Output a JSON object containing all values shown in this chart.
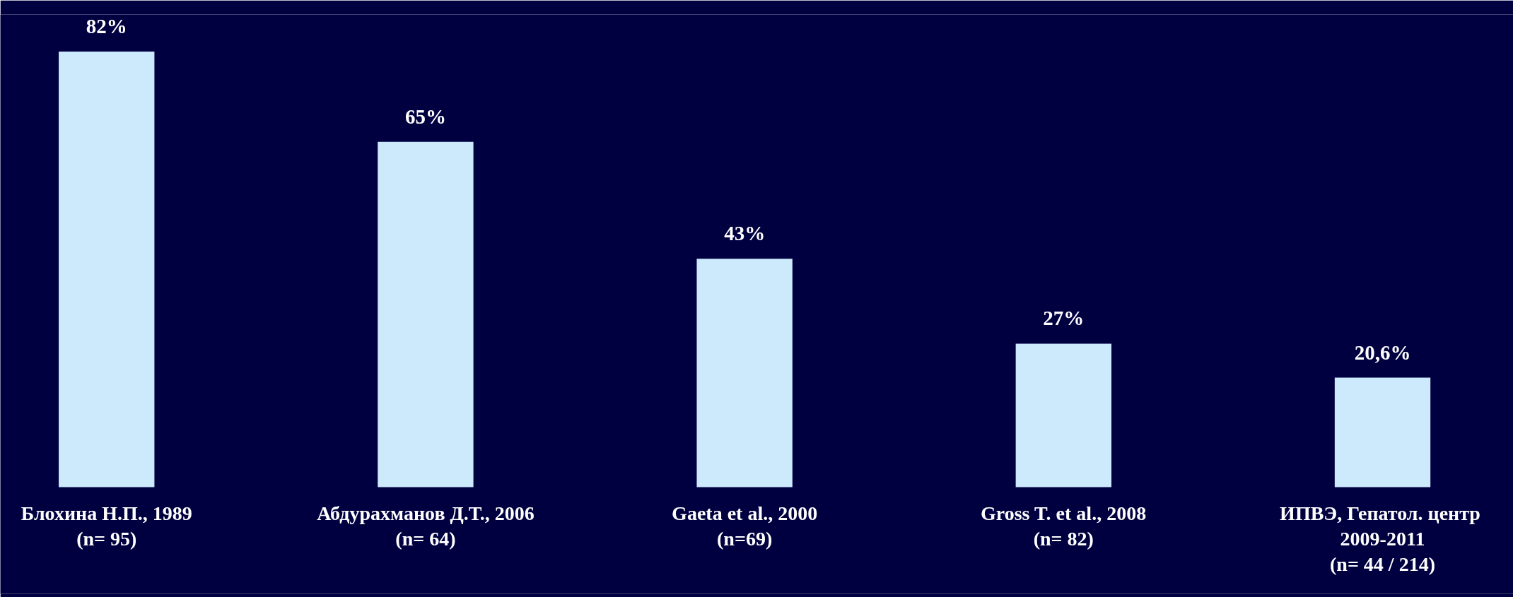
{
  "chart_data": {
    "type": "bar",
    "categories": [
      "Блохина Н.П., 1989\n(n= 95)",
      "Абдурахманов Д.Т., 2006\n(n= 64)",
      "Gaeta et al., 2000\n(n=69)",
      "Gross T. et al., 2008\n(n= 82)",
      "ИПВЭ,  Гепатол. центр\n2009-2011\n(n= 44 / 214)"
    ],
    "values": [
      82,
      65,
      43,
      27,
      20.6
    ],
    "value_labels": [
      "82%",
      "65%",
      "43%",
      "27%",
      "20,6%"
    ],
    "color": "#cceafc"
  }
}
